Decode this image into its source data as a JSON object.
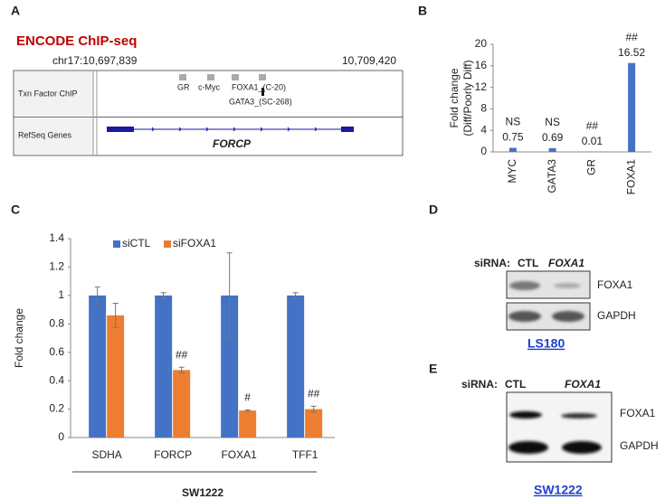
{
  "panel_labels": [
    "A",
    "B",
    "C",
    "D",
    "E"
  ],
  "genome_track": {
    "title": "ENCODE ChIP-seq",
    "start": "chr17:10,697,839",
    "end": "10,709,420",
    "tracks": [
      "Txn Factor ChIP",
      "RefSeq Genes"
    ],
    "peaks": [
      "GR",
      "c-Myc",
      "FOXA1_(C-20)",
      "GATA3_(SC-268)"
    ],
    "gene": "FORCP"
  },
  "chart_data": [
    {
      "type": "bar",
      "ylabel": [
        "Fold change",
        "(Diff/Poorly Diff)"
      ],
      "categories": [
        "MYC",
        "GATA3",
        "GR",
        "FOXA1"
      ],
      "values": [
        0.75,
        0.69,
        0.01,
        16.52
      ],
      "significance": [
        "NS",
        "NS",
        "##",
        "##"
      ],
      "color": "#4472c4",
      "ylim": [
        0,
        20
      ],
      "yticks": [
        0,
        4,
        8,
        12,
        16,
        20
      ]
    },
    {
      "type": "grouped_bar",
      "ylabel": [
        "Fold change"
      ],
      "xlabel": "SW1222",
      "categories": [
        "SDHA",
        "FORCP",
        "FOXA1",
        "TFF1"
      ],
      "series": [
        {
          "name": "siCTL",
          "color": "#4472c4",
          "values": [
            1,
            1,
            1,
            1
          ],
          "errors": [
            0.06,
            0.02,
            0.3,
            0.02
          ]
        },
        {
          "name": "siFOXA1",
          "color": "#ed7d31",
          "values": [
            0.86,
            0.475,
            0.19,
            0.2
          ],
          "errors": [
            0.085,
            0.02,
            0.005,
            0.02
          ],
          "significance": [
            null,
            "##",
            "#",
            "##"
          ]
        }
      ],
      "ylim": [
        0,
        1.4
      ],
      "yticks": [
        0,
        0.2,
        0.4,
        0.6,
        0.8,
        1,
        1.2,
        1.4
      ],
      "legend": "top-left"
    }
  ],
  "blots": [
    {
      "siRNA_label": "siRNA:",
      "conditions": [
        "CTL",
        "FOXA1"
      ],
      "bands": [
        "FOXA1",
        "GAPDH"
      ],
      "cell_line": "LS180"
    },
    {
      "siRNA_label": "siRNA:",
      "conditions": [
        "CTL",
        "FOXA1"
      ],
      "bands": [
        "FOXA1",
        "GAPDH"
      ],
      "cell_line": "SW1222"
    }
  ]
}
